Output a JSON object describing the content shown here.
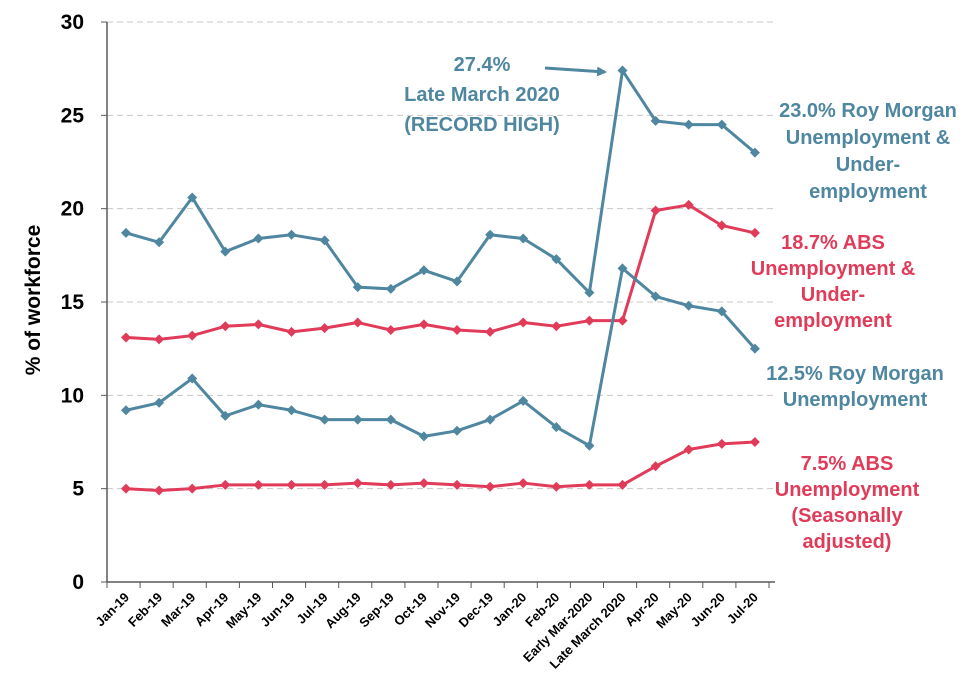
{
  "chart_data": {
    "type": "line",
    "title": "",
    "xlabel": "",
    "ylabel": "% of workforce",
    "ylim": [
      0,
      30
    ],
    "yticks": [
      "0",
      "5",
      "10",
      "15",
      "20",
      "25",
      "30"
    ],
    "grid": true,
    "categories": [
      "Jan-19",
      "Feb-19",
      "Mar-19",
      "Apr-19",
      "May-19",
      "Jun-19",
      "Jul-19",
      "Aug-19",
      "Sep-19",
      "Oct-19",
      "Nov-19",
      "Dec-19",
      "Jan-20",
      "Feb-20",
      "Early Mar-2020",
      "Late March 2020",
      "Apr-20",
      "May-20",
      "Jun-20",
      "Jul-20"
    ],
    "colors": {
      "roy_morgan": "#4f86a0",
      "abs": "#e03c5a"
    },
    "series": [
      {
        "key": "rm_under",
        "color": "roy_morgan",
        "values": [
          18.7,
          18.2,
          20.6,
          17.7,
          18.4,
          18.6,
          18.3,
          15.8,
          15.7,
          16.7,
          16.1,
          18.6,
          18.4,
          17.3,
          15.5,
          27.4,
          24.7,
          24.5,
          24.5,
          23.0
        ]
      },
      {
        "key": "abs_under",
        "color": "abs",
        "values": [
          13.1,
          13.0,
          13.2,
          13.7,
          13.8,
          13.4,
          13.6,
          13.9,
          13.5,
          13.8,
          13.5,
          13.4,
          13.9,
          13.7,
          14.0,
          14.0,
          19.9,
          20.2,
          19.1,
          18.7
        ]
      },
      {
        "key": "rm_unemp",
        "color": "roy_morgan",
        "values": [
          9.2,
          9.6,
          10.9,
          8.9,
          9.5,
          9.2,
          8.7,
          8.7,
          8.7,
          7.8,
          8.1,
          8.7,
          9.7,
          8.3,
          7.3,
          16.8,
          15.3,
          14.8,
          14.5,
          12.5
        ]
      },
      {
        "key": "abs_unemp",
        "color": "abs",
        "values": [
          5.0,
          4.9,
          5.0,
          5.2,
          5.2,
          5.2,
          5.2,
          5.3,
          5.2,
          5.3,
          5.2,
          5.1,
          5.3,
          5.1,
          5.2,
          5.2,
          6.2,
          7.1,
          7.4,
          7.5
        ]
      }
    ],
    "annotations": [
      {
        "key": "record",
        "color": "roy_morgan",
        "lines": [
          "27.4%",
          "Late March 2020",
          "(RECORD HIGH)"
        ]
      },
      {
        "key": "rm_under",
        "color": "roy_morgan",
        "lines": [
          "23.0% Roy Morgan",
          "Unemployment &",
          "Under-",
          "employment"
        ]
      },
      {
        "key": "abs_under",
        "color": "abs",
        "lines": [
          "18.7% ABS",
          "Unemployment &",
          "Under-",
          "employment"
        ]
      },
      {
        "key": "rm_unemp",
        "color": "roy_morgan",
        "lines": [
          "12.5% Roy Morgan",
          "Unemployment"
        ]
      },
      {
        "key": "abs_unemp",
        "color": "abs",
        "lines": [
          "7.5% ABS",
          "Unemployment",
          "(Seasonally",
          "adjusted)"
        ]
      }
    ]
  }
}
